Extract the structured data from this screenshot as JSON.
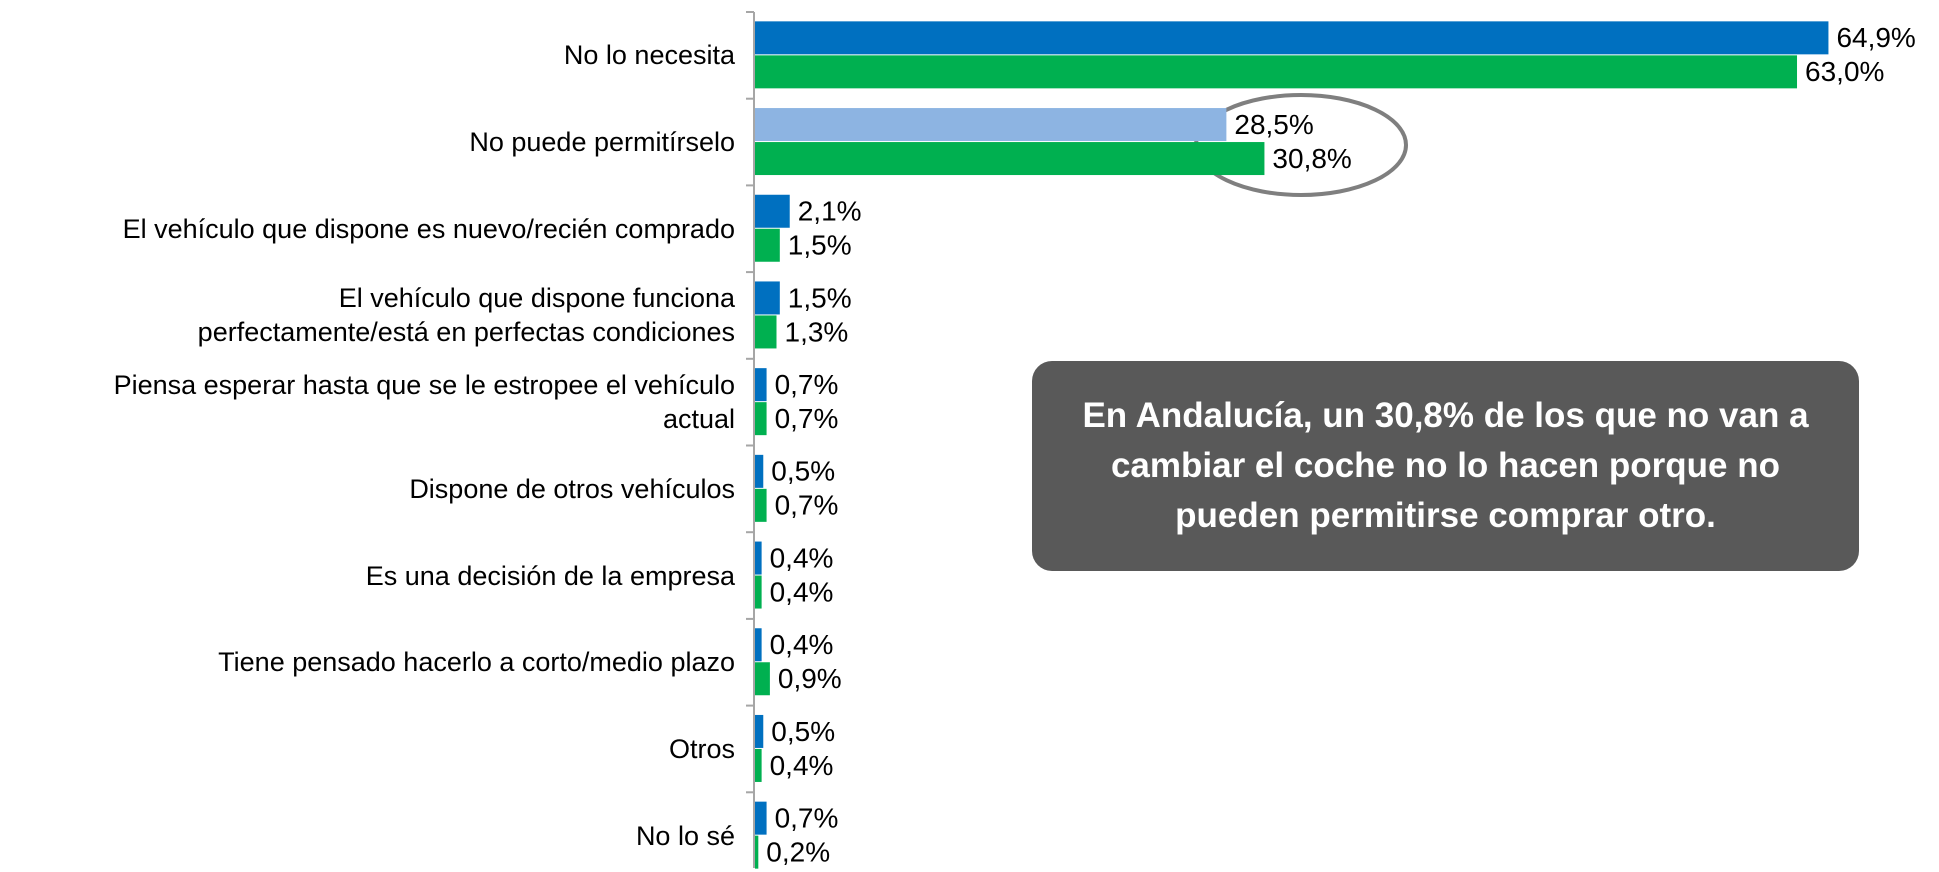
{
  "chart_data": {
    "type": "hbar",
    "categories": [
      "No lo necesita",
      "No puede permitírselo",
      "El vehículo que dispone es nuevo/recién comprado",
      "El vehículo que dispone funciona\nperfectamente/está en perfectas condiciones",
      "Piensa esperar hasta que se le estropee el vehículo\nactual",
      "Dispone de otros vehículos",
      "Es una decisión de la empresa",
      "Tiene pensado hacerlo a corto/medio plazo",
      "Otros",
      "No lo sé"
    ],
    "series": [
      {
        "color": "#0070c0",
        "colors": [
          "#0070c0",
          "#8db4e2",
          "#0070c0",
          "#0070c0",
          "#0070c0",
          "#0070c0",
          "#0070c0",
          "#0070c0",
          "#0070c0",
          "#0070c0"
        ],
        "values": [
          64.9,
          28.5,
          2.1,
          1.5,
          0.7,
          0.5,
          0.4,
          0.4,
          0.5,
          0.7
        ],
        "value_labels": [
          "64,9%",
          "28,5%",
          "2,1%",
          "1,5%",
          "0,7%",
          "0,5%",
          "0,4%",
          "0,4%",
          "0,5%",
          "0,7%"
        ]
      },
      {
        "color": "#00b050",
        "values": [
          63.0,
          30.8,
          1.5,
          1.3,
          0.7,
          0.7,
          0.4,
          0.9,
          0.4,
          0.2
        ],
        "value_labels": [
          "63,0%",
          "30,8%",
          "1,5%",
          "1,3%",
          "0,7%",
          "0,7%",
          "0,4%",
          "0,9%",
          "0,4%",
          "0,2%"
        ]
      }
    ],
    "annotation": "En Andalucía, un 30,8% de los que no van a cambiar el coche no lo hacen porque no pueden permitirse comprar otro."
  }
}
